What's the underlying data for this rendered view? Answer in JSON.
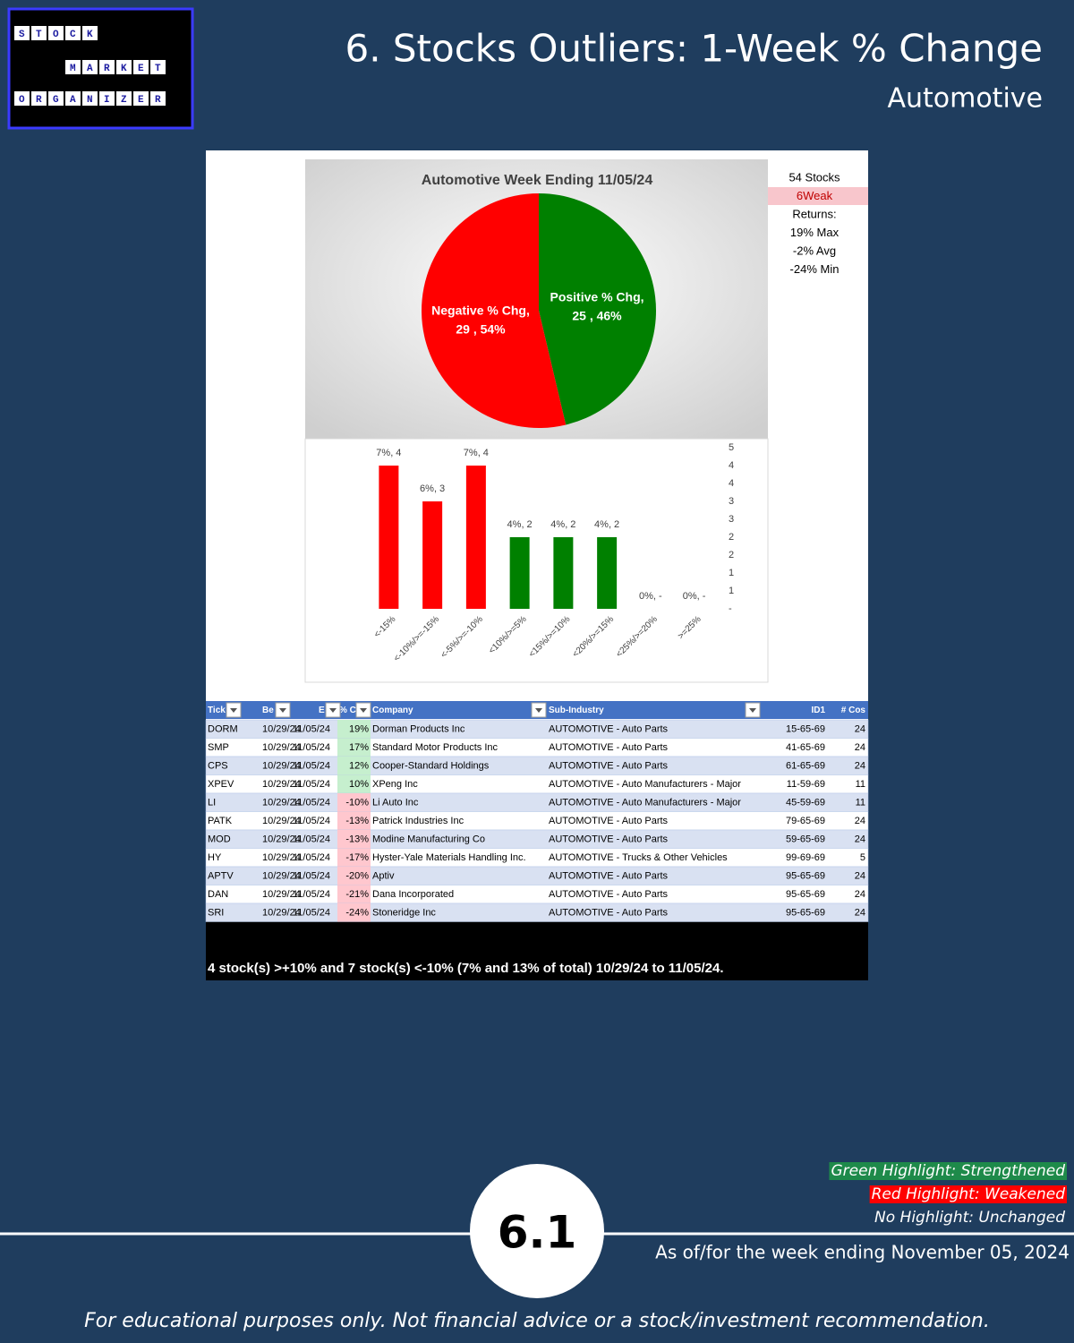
{
  "header": {
    "title": "6. Stocks Outliers: 1-Week % Change",
    "subtitle": "Automotive"
  },
  "logo": {
    "words": [
      "STOCK",
      "MARKET",
      "ORGANIZER"
    ]
  },
  "chart_data": [
    {
      "type": "pie",
      "title": "Automotive Week Ending 11/05/24",
      "categories": [
        "Negative % Chg,",
        "Positive % Chg,"
      ],
      "values": [
        29,
        25
      ],
      "value_labels": [
        "29 , 54%",
        "25 , 46%"
      ],
      "colors": [
        "#ff0000",
        "#008000"
      ]
    },
    {
      "type": "bar",
      "categories": [
        "<-15%",
        "<-10%/>=-15%",
        "<-5%/>=-10%",
        "<10%/>=5%",
        "<15%/>=10%",
        "<20%/>=15%",
        "<25%/>=20%",
        ">=25%"
      ],
      "values": [
        4,
        3,
        4,
        2,
        2,
        2,
        0,
        0
      ],
      "value_labels": [
        "7%,  4",
        "6%,  3",
        "7%,  4",
        "4%,  2",
        "4%,  2",
        "4%,  2",
        "0%,  -",
        "0%,  -"
      ],
      "colors": [
        "#ff0000",
        "#ff0000",
        "#ff0000",
        "#008000",
        "#008000",
        "#008000",
        "#008000",
        "#008000"
      ],
      "ylim": [
        0,
        4.5
      ],
      "yticks": [
        {
          "value": 0,
          "label": "-"
        },
        {
          "value": 0.5,
          "label": "1"
        },
        1,
        {
          "value": 1.5,
          "label": "2"
        },
        2,
        {
          "value": 2.5,
          "label": "3"
        },
        3,
        {
          "value": 3.5,
          "label": "4"
        },
        4,
        {
          "value": 4.5,
          "label": "5"
        }
      ]
    }
  ],
  "stats": [
    "54 Stocks",
    "6Weak",
    "Returns:",
    "19% Max",
    "-2% Avg",
    "-24% Min"
  ],
  "table": {
    "headers": [
      "Tick",
      "Be",
      "E",
      "% C",
      "Company",
      "Sub-Industry",
      "ID1",
      "# Cos"
    ],
    "rows": [
      [
        "DORM",
        "10/29/24",
        "11/05/24",
        "19%",
        "Dorman Products Inc",
        "AUTOMOTIVE - Auto Parts",
        "15-65-69",
        "24"
      ],
      [
        "SMP",
        "10/29/24",
        "11/05/24",
        "17%",
        "Standard Motor Products Inc",
        "AUTOMOTIVE - Auto Parts",
        "41-65-69",
        "24"
      ],
      [
        "CPS",
        "10/29/24",
        "11/05/24",
        "12%",
        "Cooper-Standard Holdings",
        "AUTOMOTIVE - Auto Parts",
        "61-65-69",
        "24"
      ],
      [
        "XPEV",
        "10/29/24",
        "11/05/24",
        "10%",
        "XPeng Inc",
        "AUTOMOTIVE - Auto Manufacturers - Major",
        "11-59-69",
        "11"
      ],
      [
        "LI",
        "10/29/24",
        "11/05/24",
        "-10%",
        "Li Auto Inc",
        "AUTOMOTIVE - Auto Manufacturers - Major",
        "45-59-69",
        "11"
      ],
      [
        "PATK",
        "10/29/24",
        "11/05/24",
        "-13%",
        "Patrick Industries Inc",
        "AUTOMOTIVE - Auto Parts",
        "79-65-69",
        "24"
      ],
      [
        "MOD",
        "10/29/24",
        "11/05/24",
        "-13%",
        "Modine Manufacturing Co",
        "AUTOMOTIVE - Auto Parts",
        "59-65-69",
        "24"
      ],
      [
        "HY",
        "10/29/24",
        "11/05/24",
        "-17%",
        "Hyster-Yale Materials Handling Inc.",
        "AUTOMOTIVE - Trucks & Other Vehicles",
        "99-69-69",
        "5"
      ],
      [
        "APTV",
        "10/29/24",
        "11/05/24",
        "-20%",
        "Aptiv",
        "AUTOMOTIVE - Auto Parts",
        "95-65-69",
        "24"
      ],
      [
        "DAN",
        "10/29/24",
        "11/05/24",
        "-21%",
        "Dana Incorporated",
        "AUTOMOTIVE - Auto Parts",
        "95-65-69",
        "24"
      ],
      [
        "SRI",
        "10/29/24",
        "11/05/24",
        "-24%",
        "Stoneridge Inc",
        "AUTOMOTIVE - Auto Parts",
        "95-65-69",
        "24"
      ]
    ],
    "highlights": [
      "#c6efce",
      "#c6efce",
      "#c6efce",
      "#c6efce",
      "#ffc7ce",
      "#ffc7ce",
      "#ffc7ce",
      "#ffc7ce",
      "#ffc7ce",
      "#ffc7ce",
      "#ffc7ce"
    ],
    "summary": "4 stock(s) >+10% and 7 stock(s) <-10% (7% and 13% of total) 10/29/24 to 11/05/24."
  },
  "legend": [
    "Green Highlight: Strengthened",
    "Red Highlight: Weakened",
    "No Highlight: Unchanged"
  ],
  "badge": "6.1",
  "as_of": "As of/for the week ending November 05, 2024",
  "disclaimer": "For educational purposes only. Not financial advice or a stock/investment recommendation."
}
